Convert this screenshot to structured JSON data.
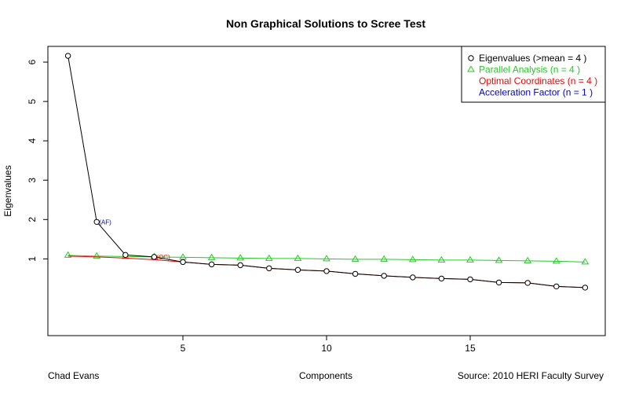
{
  "chart_data": {
    "type": "line",
    "title": "Non Graphical Solutions to Scree Test",
    "xlabel": "Components",
    "ylabel": "Eigenvalues",
    "xlim": [
      0.3,
      19.7
    ],
    "ylim": [
      -0.95,
      6.4
    ],
    "x_ticks": [
      5,
      10,
      15
    ],
    "y_ticks": [
      1,
      2,
      3,
      4,
      5,
      6
    ],
    "grid": false,
    "legend_position": "top-right",
    "series": [
      {
        "name": "Eigenvalues",
        "marker": "circle",
        "color": "#000000",
        "x": [
          1,
          2,
          3,
          4,
          5,
          6,
          7,
          8,
          9,
          10,
          11,
          12,
          13,
          14,
          15,
          16,
          17,
          18,
          19
        ],
        "values": [
          6.16,
          1.94,
          1.1,
          1.05,
          0.92,
          0.86,
          0.84,
          0.76,
          0.72,
          0.69,
          0.62,
          0.57,
          0.53,
          0.5,
          0.48,
          0.4,
          0.39,
          0.3,
          0.27
        ]
      },
      {
        "name": "Parallel Analysis",
        "marker": "triangle",
        "color": "#22cc22",
        "x": [
          1,
          2,
          3,
          4,
          5,
          6,
          7,
          8,
          9,
          10,
          11,
          12,
          13,
          14,
          15,
          16,
          17,
          18,
          19
        ],
        "values": [
          1.09,
          1.07,
          1.06,
          1.05,
          1.04,
          1.03,
          1.02,
          1.01,
          1.01,
          1.0,
          0.99,
          0.99,
          0.98,
          0.97,
          0.97,
          0.96,
          0.95,
          0.94,
          0.92
        ]
      },
      {
        "name": "Optimal Coordinates",
        "marker": "none",
        "color": "#ff0000",
        "x": [
          1,
          2,
          3,
          4,
          5,
          6,
          7,
          8,
          9,
          10,
          11,
          12,
          13,
          14,
          15,
          16,
          17,
          18,
          19
        ],
        "values": [
          1.07,
          1.05,
          1.02,
          0.98,
          0.92,
          0.86,
          0.84,
          0.76,
          0.72,
          0.69,
          0.62,
          0.57,
          0.53,
          0.5,
          0.48,
          0.4,
          0.39,
          0.3,
          0.27
        ]
      }
    ],
    "annotations": [
      {
        "text": "(AF)",
        "x": 2,
        "y": 1.94,
        "color": "#0000cc"
      },
      {
        "text": "(OC)",
        "x": 4,
        "y": 1.05,
        "color": "#ff0000"
      }
    ],
    "legend": [
      {
        "symbol": "circle",
        "symbol_color": "#000000",
        "text": "Eigenvalues (>mean  =  4 )",
        "text_color": "#000000"
      },
      {
        "symbol": "triangle",
        "symbol_color": "#22cc22",
        "text": "Parallel Analysis (n =  4 )",
        "text_color": "#22cc22"
      },
      {
        "symbol": "none",
        "symbol_color": "",
        "text": "Optimal Coordinates (n =  4 )",
        "text_color": "#ff0000"
      },
      {
        "symbol": "none",
        "symbol_color": "",
        "text": "Acceleration Factor (n =  1 )",
        "text_color": "#0000cc"
      }
    ],
    "footer": {
      "left": "Chad Evans",
      "center": "Components",
      "right": "Source: 2010 HERI Faculty Survey"
    }
  }
}
